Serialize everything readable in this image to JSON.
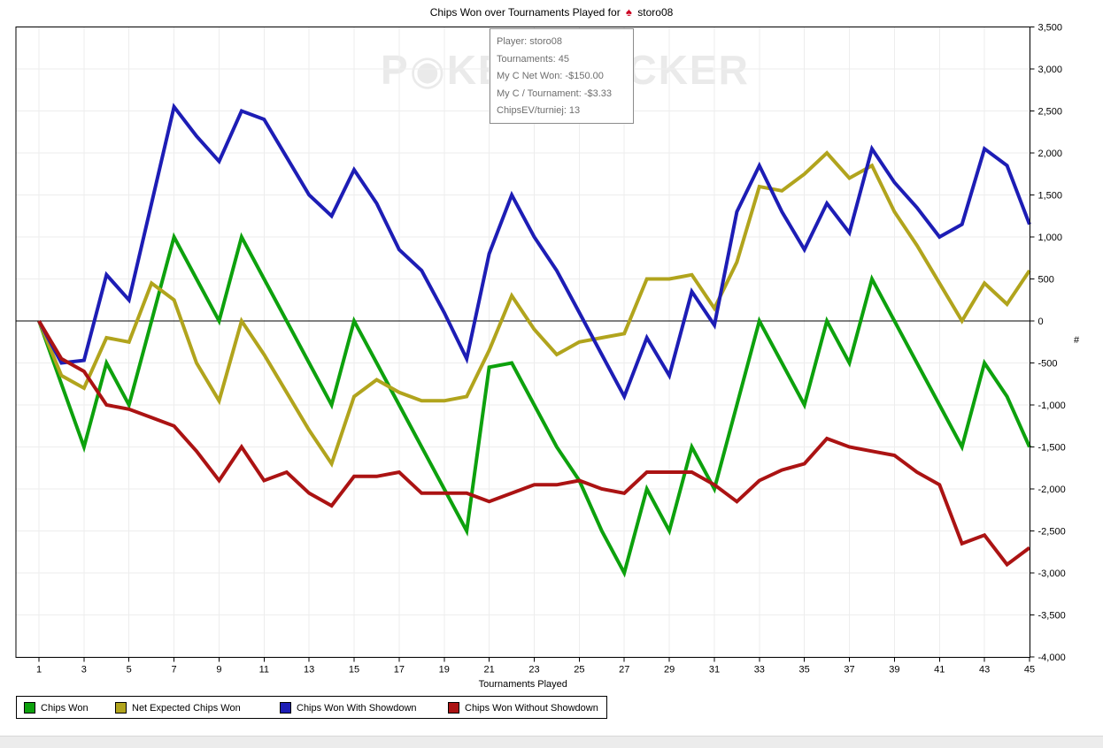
{
  "title": {
    "text_before": "Chips Won over Tournaments Played for",
    "player": "storo08",
    "spade_icon": "♠",
    "spade_color": "#cc0022"
  },
  "watermark": {
    "text_p": "P",
    "chip": "◉",
    "text_rest": "KERTRACKER"
  },
  "tooltip": {
    "lines": [
      "Player: storo08",
      "Tournaments: 45",
      "My C Net Won: -$150.00",
      "My C / Tournament: -$3.33",
      "ChipsEV/turniej: 13"
    ]
  },
  "chart_data": {
    "type": "line",
    "title": "Chips Won over Tournaments Played for storo08",
    "xlabel": "Tournaments Played",
    "ylabel": "#",
    "grid": true,
    "legend_position": "bottom-left",
    "xlim": [
      1,
      45
    ],
    "ylim": [
      -4000,
      3500
    ],
    "y_tick_step": 500,
    "x": [
      1,
      2,
      3,
      4,
      5,
      6,
      7,
      8,
      9,
      10,
      11,
      12,
      13,
      14,
      15,
      16,
      17,
      18,
      19,
      20,
      21,
      22,
      23,
      24,
      25,
      26,
      27,
      28,
      29,
      30,
      31,
      32,
      33,
      34,
      35,
      36,
      37,
      38,
      39,
      40,
      41,
      42,
      43,
      44,
      45
    ],
    "x_tick_labels": [
      "1",
      "3",
      "5",
      "7",
      "9",
      "11",
      "13",
      "15",
      "17",
      "19",
      "21",
      "23",
      "25",
      "27",
      "29",
      "31",
      "33",
      "35",
      "37",
      "39",
      "41",
      "43",
      "45"
    ],
    "y_tick_labels": [
      "3,500",
      "3,000",
      "2,500",
      "2,000",
      "1,500",
      "1,000",
      "500",
      "0",
      "-500",
      "-1,000",
      "-1,500",
      "-2,000",
      "-2,500",
      "-3,000",
      "-3,500",
      "-4,000"
    ],
    "series": [
      {
        "name": "Chips Won",
        "color": "#0da10d",
        "values": [
          0,
          -750,
          -1500,
          -500,
          -1000,
          0,
          1000,
          500,
          0,
          1000,
          500,
          0,
          -500,
          -1000,
          0,
          -500,
          -1000,
          -1500,
          -2000,
          -2500,
          -550,
          -500,
          -1000,
          -1500,
          -1900,
          -2500,
          -3000,
          -2000,
          -2500,
          -1500,
          -2000,
          -1000,
          0,
          -500,
          -1000,
          0,
          -500,
          500,
          0,
          -500,
          -1000,
          -1500,
          -500,
          -900,
          -1500
        ]
      },
      {
        "name": "Net Expected Chips Won",
        "color": "#b1a41d",
        "values": [
          0,
          -650,
          -800,
          -200,
          -250,
          450,
          250,
          -500,
          -950,
          0,
          -400,
          -850,
          -1300,
          -1700,
          -900,
          -700,
          -850,
          -950,
          -950,
          -900,
          -350,
          300,
          -100,
          -400,
          -250,
          -200,
          -150,
          500,
          500,
          550,
          150,
          700,
          1600,
          1550,
          1750,
          2000,
          1700,
          1850,
          1300,
          900,
          450,
          0,
          450,
          200,
          600
        ]
      },
      {
        "name": "Chips Won With Showdown",
        "color": "#1d1db5",
        "values": [
          0,
          -500,
          -470,
          550,
          250,
          1400,
          2550,
          2200,
          1900,
          2500,
          2400,
          1950,
          1500,
          1250,
          1800,
          1400,
          850,
          600,
          100,
          -450,
          800,
          1500,
          1000,
          600,
          100,
          -400,
          -900,
          -200,
          -650,
          350,
          -50,
          1300,
          1850,
          1300,
          850,
          1400,
          1050,
          2050,
          1650,
          1350,
          1000,
          1150,
          2050,
          1850,
          1150
        ]
      },
      {
        "name": "Chips Won Without Showdown",
        "color": "#ab1313",
        "values": [
          0,
          -450,
          -600,
          -1000,
          -1050,
          -1150,
          -1250,
          -1550,
          -1900,
          -1500,
          -1900,
          -1800,
          -2050,
          -2200,
          -1850,
          -1850,
          -1800,
          -2050,
          -2050,
          -2050,
          -2150,
          -2050,
          -1950,
          -1950,
          -1900,
          -2000,
          -2050,
          -1800,
          -1800,
          -1800,
          -1950,
          -2150,
          -1900,
          -1775,
          -1700,
          -1400,
          -1500,
          -1550,
          -1600,
          -1800,
          -1950,
          -2650,
          -2550,
          -2900,
          -2700
        ]
      }
    ]
  }
}
